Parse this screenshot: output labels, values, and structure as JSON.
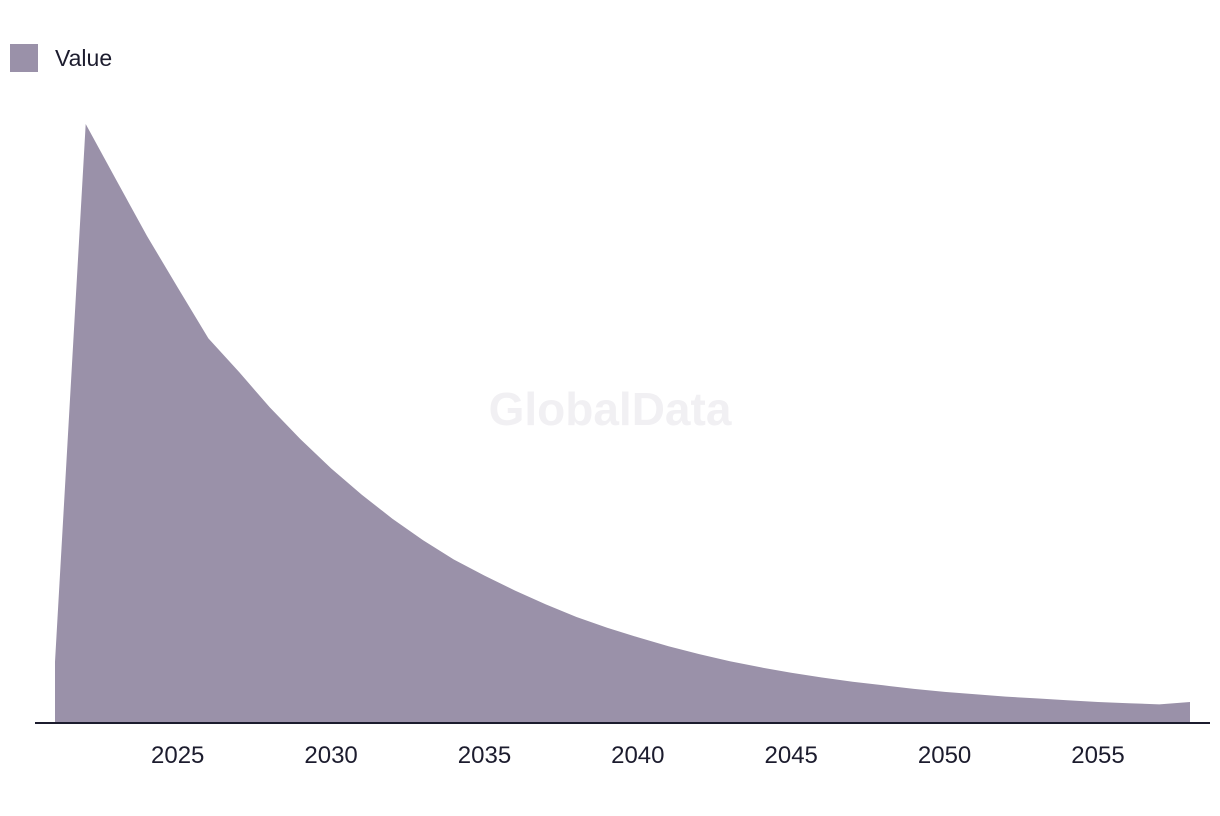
{
  "legend": {
    "label": "Value",
    "color": "#9a91a9"
  },
  "watermark": "GlobalData",
  "chart_data": {
    "type": "area",
    "series": [
      {
        "name": "Value",
        "color": "#9a91a9",
        "x": [
          2021,
          2022,
          2023,
          2024,
          2025,
          2026,
          2027,
          2028,
          2029,
          2030,
          2031,
          2032,
          2033,
          2034,
          2035,
          2036,
          2037,
          2038,
          2039,
          2040,
          2041,
          2042,
          2043,
          2044,
          2045,
          2046,
          2047,
          2048,
          2049,
          2050,
          2051,
          2052,
          2053,
          2054,
          2055,
          2056,
          2057,
          2058
        ],
        "values": [
          10.2,
          100,
          90.6,
          81.3,
          72.7,
          64.2,
          58.6,
          52.7,
          47.4,
          42.5,
          38.1,
          34.1,
          30.5,
          27.3,
          24.6,
          22.1,
          19.8,
          17.7,
          15.9,
          14.3,
          12.8,
          11.5,
          10.3,
          9.3,
          8.4,
          7.6,
          6.9,
          6.3,
          5.7,
          5.2,
          4.8,
          4.4,
          4.1,
          3.8,
          3.5,
          3.3,
          3.1,
          3.5
        ]
      }
    ],
    "xticks": [
      "2025",
      "2030",
      "2035",
      "2040",
      "2045",
      "2050",
      "2055"
    ],
    "xlim": [
      2021,
      2058
    ],
    "ylim": [
      0,
      100
    ],
    "xlabel": "",
    "ylabel": "",
    "grid": false,
    "legend_position": "top-left"
  }
}
